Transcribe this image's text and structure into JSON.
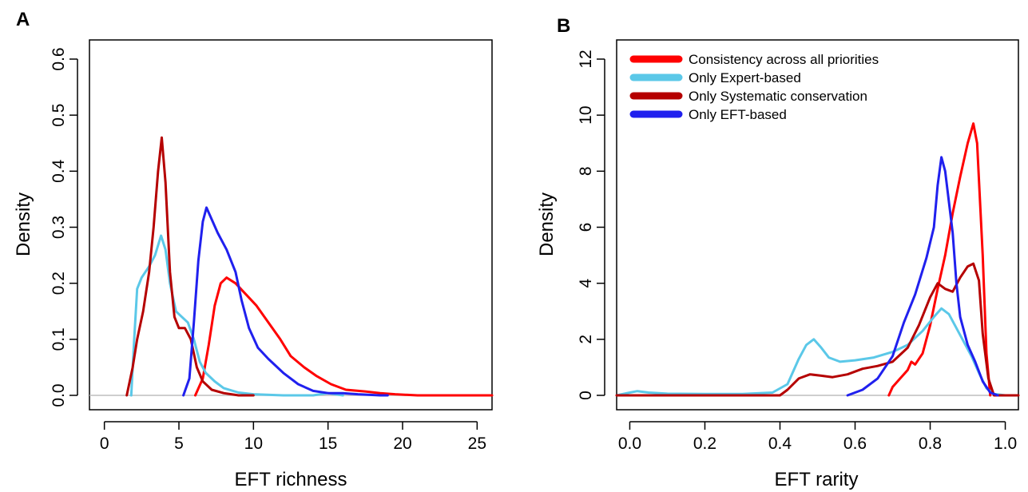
{
  "chart_data": [
    {
      "panel": "A",
      "type": "line",
      "title": "",
      "xlabel": "EFT richness",
      "ylabel": "Density",
      "xlim": [
        -1,
        26
      ],
      "ylim": [
        0,
        0.6
      ],
      "xticks": [
        "0",
        "5",
        "10",
        "15",
        "20",
        "25"
      ],
      "yticks": [
        "0.0",
        "0.1",
        "0.2",
        "0.3",
        "0.4",
        "0.5",
        "0.6"
      ],
      "baseline": 0,
      "grid": false,
      "series": [
        {
          "name": "Consistency across all priorities",
          "color": "#ff0000",
          "x": [
            6.1,
            6.6,
            7.0,
            7.4,
            7.8,
            8.2,
            8.8,
            9.5,
            10.2,
            11.0,
            11.8,
            12.5,
            13.4,
            14.2,
            15.2,
            16.2,
            17.5,
            18.5,
            19.5,
            21.0,
            23.0,
            26.0
          ],
          "y": [
            0.0,
            0.03,
            0.09,
            0.16,
            0.2,
            0.21,
            0.2,
            0.18,
            0.16,
            0.13,
            0.1,
            0.07,
            0.05,
            0.035,
            0.02,
            0.01,
            0.007,
            0.004,
            0.002,
            0.0,
            0.0,
            0.0
          ]
        },
        {
          "name": "Only Expert-based",
          "color": "#5bc8e8",
          "x": [
            1.8,
            2.0,
            2.2,
            2.5,
            3.0,
            3.4,
            3.8,
            4.1,
            4.4,
            4.8,
            5.2,
            5.6,
            6.0,
            6.4,
            6.8,
            7.4,
            8.0,
            9.0,
            10.0,
            12.0,
            14.0,
            15.0,
            16.0
          ],
          "y": [
            0.0,
            0.1,
            0.19,
            0.21,
            0.23,
            0.25,
            0.285,
            0.26,
            0.2,
            0.15,
            0.14,
            0.13,
            0.1,
            0.06,
            0.04,
            0.025,
            0.013,
            0.005,
            0.002,
            0.0,
            0.0,
            0.004,
            0.0
          ]
        },
        {
          "name": "Only Systematic conservation",
          "color": "#b50000",
          "x": [
            1.5,
            1.9,
            2.2,
            2.6,
            3.0,
            3.3,
            3.6,
            3.85,
            4.1,
            4.4,
            4.7,
            5.0,
            5.4,
            5.8,
            6.2,
            6.6,
            7.2,
            8.0,
            9.0,
            10.0
          ],
          "y": [
            0.0,
            0.05,
            0.1,
            0.15,
            0.22,
            0.3,
            0.4,
            0.46,
            0.38,
            0.22,
            0.14,
            0.12,
            0.12,
            0.1,
            0.05,
            0.025,
            0.01,
            0.004,
            0.0,
            0.0
          ]
        },
        {
          "name": "Only EFT-based",
          "color": "#2020ee",
          "x": [
            5.3,
            5.7,
            6.0,
            6.3,
            6.6,
            6.85,
            7.1,
            7.6,
            8.2,
            8.8,
            9.2,
            9.7,
            10.3,
            11.0,
            12.0,
            13.0,
            14.0,
            15.0,
            16.0,
            17.0,
            18.5,
            19.0
          ],
          "y": [
            0.0,
            0.03,
            0.13,
            0.24,
            0.31,
            0.335,
            0.32,
            0.29,
            0.26,
            0.22,
            0.17,
            0.12,
            0.085,
            0.065,
            0.04,
            0.02,
            0.008,
            0.004,
            0.004,
            0.002,
            0.0,
            0.0
          ]
        }
      ]
    },
    {
      "panel": "B",
      "type": "line",
      "title": "",
      "xlabel": "EFT rarity",
      "ylabel": "Density",
      "xlim": [
        -0.035,
        1.035
      ],
      "ylim": [
        0,
        12
      ],
      "xticks": [
        "0.0",
        "0.2",
        "0.4",
        "0.6",
        "0.8",
        "1.0"
      ],
      "yticks": [
        "0",
        "2",
        "4",
        "6",
        "8",
        "10",
        "12"
      ],
      "baseline": 0,
      "grid": false,
      "legend_position": "top-left",
      "series": [
        {
          "name": "Consistency across all priorities",
          "color": "#ff0000",
          "x": [
            0.69,
            0.7,
            0.72,
            0.74,
            0.75,
            0.76,
            0.78,
            0.8,
            0.82,
            0.84,
            0.86,
            0.88,
            0.9,
            0.915,
            0.925,
            0.94,
            0.95,
            0.96
          ],
          "y": [
            0.0,
            0.3,
            0.6,
            0.9,
            1.2,
            1.1,
            1.5,
            2.5,
            3.8,
            5.0,
            6.5,
            7.8,
            9.0,
            9.7,
            9.0,
            5.0,
            1.5,
            0.0
          ]
        },
        {
          "name": "Only Expert-based",
          "color": "#5bc8e8",
          "x": [
            -0.035,
            0.0,
            0.02,
            0.05,
            0.1,
            0.2,
            0.3,
            0.38,
            0.42,
            0.45,
            0.47,
            0.49,
            0.51,
            0.53,
            0.56,
            0.6,
            0.65,
            0.7,
            0.74,
            0.78,
            0.81,
            0.83,
            0.85,
            0.87,
            0.89,
            0.91,
            0.93,
            0.95,
            0.97,
            1.0
          ],
          "y": [
            0.0,
            0.1,
            0.15,
            0.1,
            0.06,
            0.05,
            0.05,
            0.1,
            0.4,
            1.3,
            1.8,
            2.0,
            1.7,
            1.35,
            1.2,
            1.25,
            1.35,
            1.55,
            1.8,
            2.3,
            2.8,
            3.1,
            2.9,
            2.4,
            1.9,
            1.4,
            0.8,
            0.25,
            0.05,
            0.0
          ]
        },
        {
          "name": "Only Systematic conservation",
          "color": "#b50000",
          "x": [
            -0.035,
            0.3,
            0.4,
            0.42,
            0.45,
            0.48,
            0.51,
            0.54,
            0.58,
            0.62,
            0.66,
            0.7,
            0.74,
            0.77,
            0.8,
            0.82,
            0.84,
            0.86,
            0.88,
            0.9,
            0.915,
            0.93,
            0.94,
            0.955,
            0.97,
            1.035
          ],
          "y": [
            0.0,
            0.0,
            0.0,
            0.2,
            0.6,
            0.75,
            0.7,
            0.65,
            0.75,
            0.95,
            1.05,
            1.2,
            1.7,
            2.5,
            3.5,
            4.0,
            3.8,
            3.7,
            4.2,
            4.6,
            4.7,
            4.1,
            2.2,
            0.6,
            0.0,
            0.0
          ]
        },
        {
          "name": "Only EFT-based",
          "color": "#2020ee",
          "x": [
            0.58,
            0.62,
            0.66,
            0.7,
            0.73,
            0.76,
            0.79,
            0.81,
            0.82,
            0.83,
            0.84,
            0.86,
            0.87,
            0.88,
            0.9,
            0.92,
            0.94,
            0.96,
            0.98
          ],
          "y": [
            0.0,
            0.2,
            0.6,
            1.4,
            2.6,
            3.6,
            4.9,
            6.0,
            7.5,
            8.5,
            8.0,
            5.8,
            4.0,
            2.8,
            1.8,
            1.2,
            0.5,
            0.1,
            0.0
          ]
        }
      ]
    }
  ]
}
